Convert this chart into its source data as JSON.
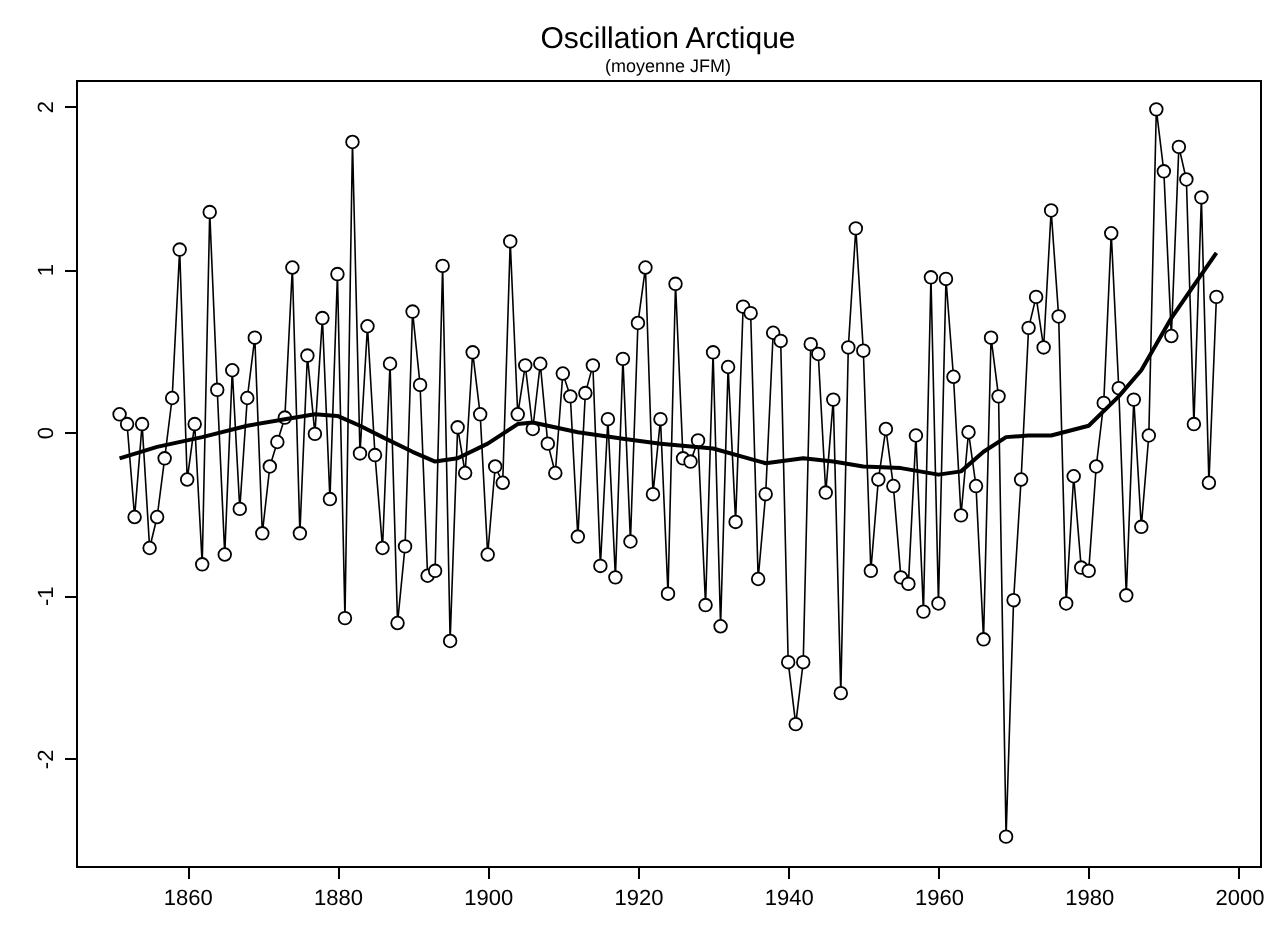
{
  "chart_data": {
    "type": "line",
    "title": "Oscillation Arctique",
    "subtitle": "(moyenne JFM)",
    "x": [
      1851,
      1852,
      1853,
      1854,
      1855,
      1856,
      1857,
      1858,
      1859,
      1860,
      1861,
      1862,
      1863,
      1864,
      1865,
      1866,
      1867,
      1868,
      1869,
      1870,
      1871,
      1872,
      1873,
      1874,
      1875,
      1876,
      1877,
      1878,
      1879,
      1880,
      1881,
      1882,
      1883,
      1884,
      1885,
      1886,
      1887,
      1888,
      1889,
      1890,
      1891,
      1892,
      1893,
      1894,
      1895,
      1896,
      1897,
      1898,
      1899,
      1900,
      1901,
      1902,
      1903,
      1904,
      1905,
      1906,
      1907,
      1908,
      1909,
      1910,
      1911,
      1912,
      1913,
      1914,
      1915,
      1916,
      1917,
      1918,
      1919,
      1920,
      1921,
      1922,
      1923,
      1924,
      1925,
      1926,
      1927,
      1928,
      1929,
      1930,
      1931,
      1932,
      1933,
      1934,
      1935,
      1936,
      1937,
      1938,
      1939,
      1940,
      1941,
      1942,
      1943,
      1944,
      1945,
      1946,
      1947,
      1948,
      1949,
      1950,
      1951,
      1952,
      1953,
      1954,
      1955,
      1956,
      1957,
      1958,
      1959,
      1960,
      1961,
      1962,
      1963,
      1964,
      1965,
      1966,
      1967,
      1968,
      1969,
      1970,
      1971,
      1972,
      1973,
      1974,
      1975,
      1976,
      1977,
      1978,
      1979,
      1980,
      1981,
      1982,
      1983,
      1984,
      1985,
      1986,
      1987,
      1988,
      1989,
      1990,
      1991,
      1992,
      1993,
      1994,
      1995,
      1996,
      1997
    ],
    "series": [
      {
        "color": "#000000",
        "marker": "circle",
        "values": [
          0.11,
          0.05,
          -0.52,
          0.05,
          -0.71,
          -0.52,
          -0.16,
          0.21,
          1.12,
          -0.29,
          0.05,
          -0.81,
          1.35,
          0.26,
          -0.75,
          0.38,
          -0.47,
          0.21,
          0.58,
          -0.62,
          -0.21,
          -0.06,
          0.09,
          1.01,
          -0.62,
          0.47,
          -0.01,
          0.7,
          -0.41,
          0.97,
          -1.14,
          1.78,
          -0.13,
          0.65,
          -0.14,
          -0.71,
          0.42,
          -1.17,
          -0.7,
          0.74,
          0.29,
          -0.88,
          -0.85,
          1.02,
          -1.28,
          0.03,
          -0.25,
          0.49,
          0.11,
          -0.75,
          -0.21,
          -0.31,
          1.17,
          0.11,
          0.41,
          0.02,
          0.42,
          -0.07,
          -0.25,
          0.36,
          0.22,
          -0.64,
          0.24,
          0.41,
          -0.82,
          0.08,
          -0.89,
          0.45,
          -0.67,
          0.67,
          1.01,
          -0.38,
          0.08,
          -0.99,
          0.91,
          -0.16,
          -0.18,
          -0.05,
          -1.06,
          0.49,
          -1.19,
          0.4,
          -0.55,
          0.77,
          0.73,
          -0.9,
          -0.38,
          0.61,
          0.56,
          -1.41,
          -1.79,
          -1.41,
          0.54,
          0.48,
          -0.37,
          0.2,
          -1.6,
          0.52,
          1.25,
          0.5,
          -0.85,
          -0.29,
          0.02,
          -0.33,
          -0.89,
          -0.93,
          -0.02,
          -1.1,
          0.95,
          -1.05,
          0.94,
          0.34,
          -0.51,
          0.0,
          -0.33,
          -1.27,
          0.58,
          0.22,
          -2.48,
          -1.03,
          -0.29,
          0.64,
          0.83,
          0.52,
          1.36,
          0.71,
          -1.05,
          -0.27,
          -0.83,
          -0.85,
          -0.21,
          0.18,
          1.22,
          0.27,
          -1.0,
          0.2,
          -0.58,
          -0.02,
          1.98,
          1.6,
          0.59,
          1.75,
          1.55,
          0.05,
          1.44,
          -0.31,
          0.83
        ]
      },
      {
        "color": "#000000",
        "marker": "none",
        "x": [
          1851,
          1856,
          1862,
          1868,
          1873,
          1877,
          1880,
          1883,
          1886,
          1890,
          1893,
          1896,
          1900,
          1904,
          1906,
          1912,
          1918,
          1923,
          1930,
          1937,
          1942,
          1946,
          1950,
          1955,
          1960,
          1963,
          1966,
          1969,
          1972,
          1975,
          1980,
          1984,
          1987,
          1991,
          1994,
          1997
        ],
        "values": [
          -0.16,
          -0.09,
          -0.03,
          0.04,
          0.08,
          0.11,
          0.1,
          0.04,
          -0.03,
          -0.12,
          -0.18,
          -0.16,
          -0.07,
          0.05,
          0.06,
          0.0,
          -0.04,
          -0.07,
          -0.1,
          -0.19,
          -0.16,
          -0.18,
          -0.21,
          -0.22,
          -0.26,
          -0.24,
          -0.12,
          -0.03,
          -0.02,
          -0.02,
          0.04,
          0.22,
          0.38,
          0.7,
          0.9,
          1.1
        ]
      }
    ],
    "xlim": [
      1845.2,
      2002.8
    ],
    "xticks": [
      1860,
      1880,
      1900,
      1920,
      1940,
      1960,
      1980,
      2000
    ],
    "ylim": [
      -2.66,
      2.16
    ],
    "yticks": [
      -2,
      -1,
      0,
      1,
      2
    ],
    "grid": false
  }
}
